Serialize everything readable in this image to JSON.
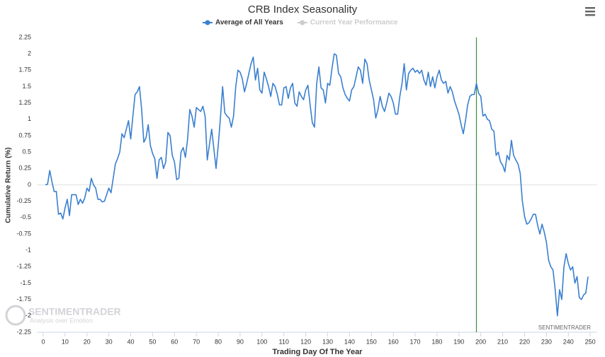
{
  "chart_data": {
    "type": "line",
    "title": "CRB Index Seasonality",
    "x_label": "Trading Day Of The Year",
    "y_label": "Cumulative Return (%)",
    "credits": "SENTIMENTRADER",
    "watermark": {
      "brand": "SENTIMENTRADER",
      "tagline": "Analysis over Emotion"
    },
    "xlim": [
      -2.9,
      253.2
    ],
    "ylim": [
      -2.25,
      2.25
    ],
    "xticks": [
      0,
      10,
      20,
      30,
      40,
      50,
      60,
      70,
      80,
      90,
      100,
      110,
      120,
      130,
      140,
      150,
      160,
      170,
      180,
      190,
      200,
      210,
      220,
      230,
      240,
      250
    ],
    "yticks": [
      2.25,
      2,
      1.75,
      1.5,
      1.25,
      1,
      0.75,
      0.5,
      0.25,
      0,
      -0.25,
      -0.5,
      -0.75,
      -1,
      -1.25,
      -1.5,
      -1.75,
      -2,
      -2.25
    ],
    "grid": false,
    "zero_line": true,
    "plot_lines": [
      {
        "value": 198,
        "color": "#3a8f3a"
      }
    ],
    "hidden_series": [
      {
        "name": "Current Year Performance",
        "color": "#cccccc"
      }
    ],
    "x": [
      1,
      2,
      3,
      4,
      5,
      6,
      7,
      8,
      9,
      10,
      11,
      12,
      13,
      14,
      15,
      16,
      17,
      18,
      19,
      20,
      21,
      22,
      23,
      24,
      25,
      26,
      27,
      28,
      29,
      30,
      31,
      32,
      33,
      34,
      35,
      36,
      37,
      38,
      39,
      40,
      41,
      42,
      43,
      44,
      45,
      46,
      47,
      48,
      49,
      50,
      51,
      52,
      53,
      54,
      55,
      56,
      57,
      58,
      59,
      60,
      61,
      62,
      63,
      64,
      65,
      66,
      67,
      68,
      69,
      70,
      71,
      72,
      73,
      74,
      75,
      76,
      77,
      78,
      79,
      80,
      81,
      82,
      83,
      84,
      85,
      86,
      87,
      88,
      89,
      90,
      91,
      92,
      93,
      94,
      95,
      96,
      97,
      98,
      99,
      100,
      101,
      102,
      103,
      104,
      105,
      106,
      107,
      108,
      109,
      110,
      111,
      112,
      113,
      114,
      115,
      116,
      117,
      118,
      119,
      120,
      121,
      122,
      123,
      124,
      125,
      126,
      127,
      128,
      129,
      130,
      131,
      132,
      133,
      134,
      135,
      136,
      137,
      138,
      139,
      140,
      141,
      142,
      143,
      144,
      145,
      146,
      147,
      148,
      149,
      150,
      151,
      152,
      153,
      154,
      155,
      156,
      157,
      158,
      159,
      160,
      161,
      162,
      163,
      164,
      165,
      166,
      167,
      168,
      169,
      170,
      171,
      172,
      173,
      174,
      175,
      176,
      177,
      178,
      179,
      180,
      181,
      182,
      183,
      184,
      185,
      186,
      187,
      188,
      189,
      190,
      191,
      192,
      193,
      194,
      195,
      196,
      197,
      198,
      199,
      200,
      201,
      202,
      203,
      204,
      205,
      206,
      207,
      208,
      209,
      210,
      211,
      212,
      213,
      214,
      215,
      216,
      217,
      218,
      219,
      220,
      221,
      222,
      223,
      224,
      225,
      226,
      227,
      228,
      229,
      230,
      231,
      232,
      233,
      234,
      235,
      236,
      237,
      238,
      239,
      240,
      241,
      242,
      243,
      244,
      245,
      246,
      247,
      248,
      249
    ],
    "series": [
      {
        "name": "Average of All Years",
        "color": "#3a7fd0",
        "values": [
          0,
          0.01,
          0.22,
          0.05,
          -0.1,
          -0.1,
          -0.45,
          -0.43,
          -0.52,
          -0.35,
          -0.22,
          -0.47,
          -0.15,
          -0.15,
          -0.15,
          -0.3,
          -0.22,
          -0.28,
          -0.2,
          -0.05,
          -0.1,
          0.1,
          0,
          -0.05,
          -0.22,
          -0.22,
          -0.26,
          -0.25,
          -0.15,
          -0.05,
          -0.12,
          0.1,
          0.32,
          0.4,
          0.5,
          0.78,
          0.72,
          0.85,
          0.98,
          0.7,
          1.05,
          1.38,
          1.42,
          1.5,
          1.15,
          0.65,
          0.72,
          0.92,
          0.6,
          0.48,
          0.4,
          0.1,
          0.38,
          0.42,
          0.25,
          0.35,
          0.8,
          0.75,
          0.45,
          0.35,
          0.08,
          0.1,
          0.5,
          0.57,
          0.42,
          0.7,
          1.15,
          1.05,
          0.88,
          1.18,
          1.15,
          1.12,
          1.2,
          1.05,
          0.38,
          0.62,
          0.85,
          0.55,
          0.25,
          0.6,
          1.02,
          1.5,
          1.1,
          1.05,
          1.02,
          0.88,
          1.05,
          1.5,
          1.75,
          1.72,
          1.62,
          1.42,
          1.55,
          1.7,
          1.85,
          1.95,
          1.6,
          1.78,
          1.45,
          1.4,
          1.72,
          1.62,
          1.5,
          1.35,
          1.55,
          1.5,
          1.38,
          1.22,
          1.22,
          1.48,
          1.5,
          1.32,
          1.48,
          1.55,
          1.25,
          1.2,
          1.42,
          1.35,
          1.3,
          1.45,
          1.52,
          1.22,
          0.95,
          0.88,
          1.55,
          1.8,
          1.48,
          1.45,
          1.25,
          1.55,
          1.52,
          1.78,
          2.0,
          1.98,
          1.7,
          1.65,
          1.48,
          1.38,
          1.32,
          1.28,
          1.45,
          1.5,
          1.65,
          1.8,
          1.75,
          1.55,
          1.92,
          1.85,
          1.6,
          1.45,
          1.3,
          1.02,
          1.15,
          1.35,
          1.2,
          1.12,
          1.25,
          1.4,
          1.35,
          1.25,
          1.08,
          1.08,
          1.35,
          1.55,
          1.85,
          1.45,
          1.7,
          1.75,
          1.78,
          1.72,
          1.75,
          1.7,
          1.75,
          1.6,
          1.52,
          1.72,
          1.5,
          1.65,
          1.48,
          1.65,
          1.75,
          1.6,
          1.55,
          1.58,
          1.4,
          1.5,
          1.42,
          1.28,
          1.18,
          1.08,
          0.92,
          0.78,
          0.98,
          1.22,
          1.35,
          1.38,
          1.38,
          1.55,
          1.4,
          1.35,
          1.05,
          1.08,
          1.0,
          0.98,
          0.85,
          0.82,
          0.45,
          0.5,
          0.35,
          0.3,
          0.2,
          0.45,
          0.38,
          0.68,
          0.45,
          0.38,
          0.32,
          0.18,
          -0.25,
          -0.48,
          -0.6,
          -0.58,
          -0.52,
          -0.45,
          -0.45,
          -0.62,
          -0.75,
          -0.6,
          -0.72,
          -0.88,
          -1.15,
          -1.25,
          -1.3,
          -1.6,
          -2.0,
          -1.6,
          -1.75,
          -1.25,
          -1.05,
          -1.2,
          -1.3,
          -1.25,
          -1.5,
          -1.4,
          -1.72,
          -1.75,
          -1.68,
          -1.65,
          -1.4
        ]
      }
    ]
  }
}
